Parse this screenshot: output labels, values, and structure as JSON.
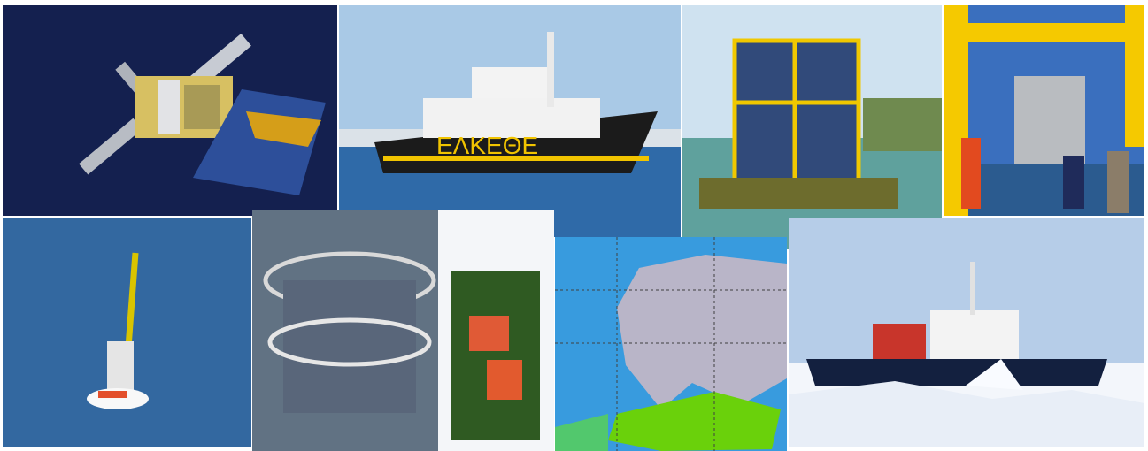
{
  "collage": {
    "tiles": [
      {
        "subject": "satellite"
      },
      {
        "subject": "research-vessel"
      },
      {
        "subject": "buoy-platform"
      },
      {
        "subject": "deck-crane-rosette"
      },
      {
        "subject": "profiling-float"
      },
      {
        "subject": "ctd-rosette"
      },
      {
        "subject": "europe-sst-map"
      },
      {
        "subject": "icebreaker-ship"
      }
    ]
  },
  "ship_hull_text": "ΕΛΚΕΘΕ",
  "colors": {
    "navy": "#14204f",
    "sea": "#2f6aa8",
    "sky": "#a9c9e6",
    "ship_hull": "#1b1b1b",
    "stripe": "#f1c400",
    "ice": "#f3f6fb",
    "land_grey": "#b9b5c8"
  }
}
